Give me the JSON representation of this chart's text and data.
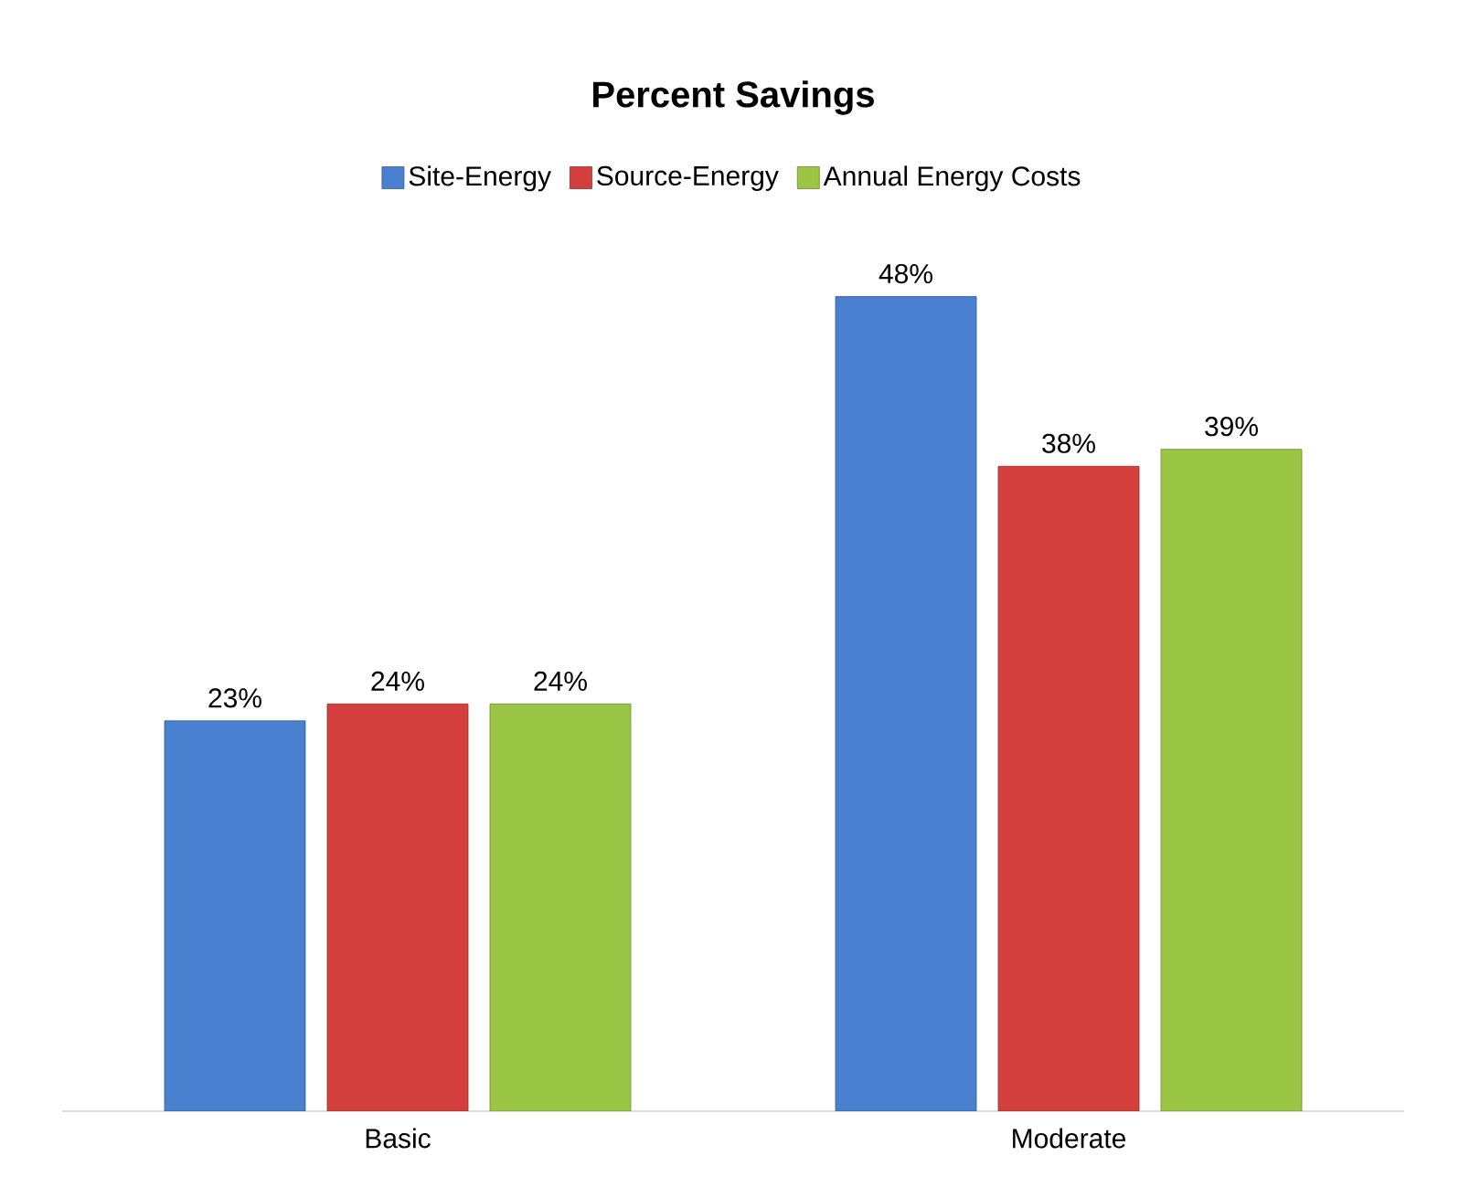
{
  "chart_data": {
    "type": "bar",
    "title": "Percent Savings",
    "categories": [
      "Basic",
      "Moderate"
    ],
    "series": [
      {
        "name": "Site-Energy",
        "color": "#4a80d0",
        "values": [
          23,
          48
        ],
        "value_labels": [
          "23%",
          "48%"
        ]
      },
      {
        "name": "Source-Energy",
        "color": "#d4403d",
        "values": [
          24,
          38
        ],
        "value_labels": [
          "24%",
          "38%"
        ]
      },
      {
        "name": "Annual Energy Costs",
        "color": "#9bc544",
        "values": [
          24,
          39
        ],
        "value_labels": [
          "24%",
          "39%"
        ]
      }
    ],
    "legend": "top"
  }
}
